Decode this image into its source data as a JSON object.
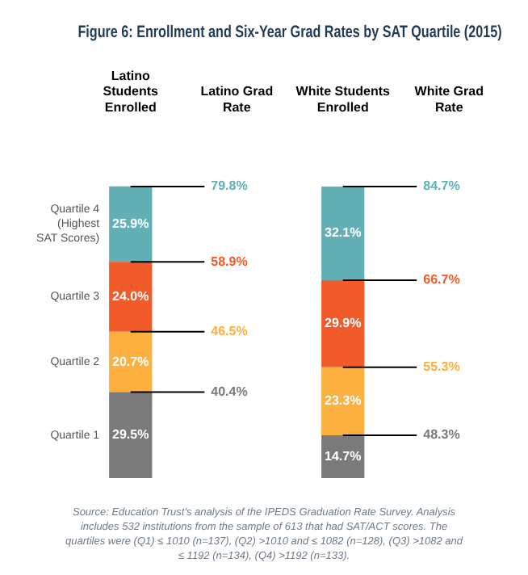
{
  "chart_data": {
    "type": "bar",
    "title": "Figure 6: Enrollment and Six-Year Grad Rates by SAT Quartile (2015)",
    "categories": [
      "Latino Students Enrolled",
      "Latino Grad Rate",
      "White Students Enrolled",
      "White Grad Rate"
    ],
    "stacked": true,
    "legend": false,
    "grid": false,
    "tick_labels": "x",
    "series": [
      {
        "name": "Quartile 1",
        "color": "#7a7a7a",
        "values": [
          29.5,
          null,
          14.7,
          null
        ],
        "value_labels": [
          "29.5%",
          null,
          "14.7%",
          null
        ]
      },
      {
        "name": "Quartile 2",
        "color": "#fbb040",
        "values": [
          20.7,
          null,
          23.3,
          null
        ],
        "value_labels": [
          "20.7%",
          null,
          "23.3%",
          null
        ]
      },
      {
        "name": "Quartile 3",
        "color": "#f15a29",
        "values": [
          24.0,
          null,
          29.9,
          null
        ],
        "value_labels": [
          "24.0%",
          null,
          "29.9%",
          null
        ]
      },
      {
        "name": "Quartile 4 (Highest SAT Scores)",
        "color": "#62b0b5",
        "values": [
          25.9,
          null,
          32.1,
          null
        ],
        "value_labels": [
          "25.9%",
          null,
          "32.1%",
          null
        ]
      }
    ],
    "annotations": [
      {
        "text": "40.4%",
        "x": "Latino Students Enrolled",
        "y": 29.5
      },
      {
        "text": "46.5%",
        "x": "Latino Students Enrolled",
        "y": 50.2
      },
      {
        "text": "58.9%",
        "x": "Latino Students Enrolled",
        "y": 74.2
      },
      {
        "text": "79.8%",
        "x": "Latino Students Enrolled",
        "y": 100
      },
      {
        "text": "48.3%",
        "x": "White Students Enrolled",
        "y": 14.7
      },
      {
        "text": "55.3%",
        "x": "White Students Enrolled",
        "y": 38
      },
      {
        "text": "66.7%",
        "x": "White Students Enrolled",
        "y": 67.9
      },
      {
        "text": "84.7%",
        "x": "White Students Enrolled",
        "y": 100
      },
      "Source: Education Trust's analysis of the IPEDS Graduation Rate Survey. Analysis includes 532 institutions from the sample of 613 that had SAT/ACT scores. The quartiles were (Q1) ≤ 1010 (n=137), (Q2) >1010 and ≤ 1082 (n=128), (Q3) >1082 and ≤ 1192 (n=134), (Q4) >1192 (n=133)."
    ]
  }
}
